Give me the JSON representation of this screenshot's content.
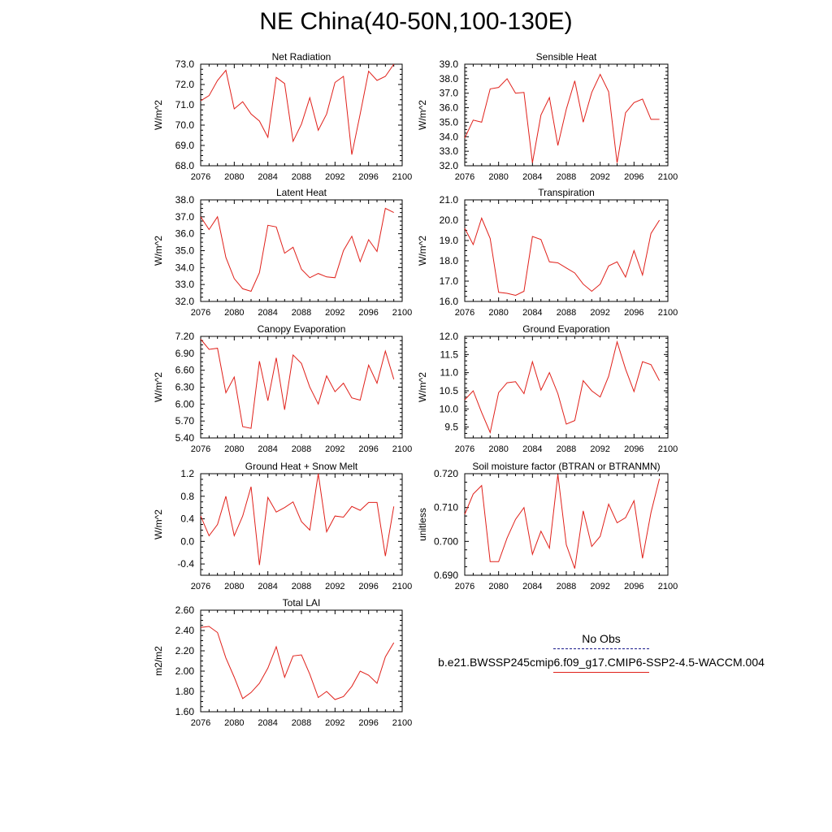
{
  "title": "NE China(40-50N,100-130E)",
  "colors": {
    "model": "#e0201a",
    "obs": "#1a1a8c",
    "axis": "#000000"
  },
  "legend": {
    "obs_label": "No Obs",
    "model_label": "b.e21.BWSSP245cmip6.f09_g17.CMIP6-SSP2-4.5-WACCM.004"
  },
  "chart_data": [
    {
      "type": "line",
      "title": "Net Radiation",
      "ylabel": "W/m^2",
      "xlim": [
        2076,
        2100
      ],
      "xticks": [
        2076,
        2080,
        2084,
        2088,
        2092,
        2096,
        2100
      ],
      "ylim": [
        68.0,
        73.0
      ],
      "yticks": [
        "68.0",
        "69.0",
        "70.0",
        "71.0",
        "72.0",
        "73.0"
      ],
      "x": [
        2076,
        2077,
        2078,
        2079,
        2080,
        2081,
        2082,
        2083,
        2084,
        2085,
        2086,
        2087,
        2088,
        2089,
        2090,
        2091,
        2092,
        2093,
        2094,
        2095,
        2096,
        2097,
        2098,
        2099
      ],
      "y": [
        71.2,
        71.45,
        72.2,
        72.7,
        70.8,
        71.15,
        70.55,
        70.2,
        69.4,
        72.35,
        72.05,
        69.2,
        70.05,
        71.35,
        69.75,
        70.55,
        72.1,
        72.4,
        68.55,
        70.55,
        72.65,
        72.2,
        72.4,
        73.0
      ]
    },
    {
      "type": "line",
      "title": "Sensible Heat",
      "ylabel": "W/m^2",
      "xlim": [
        2076,
        2100
      ],
      "xticks": [
        2076,
        2080,
        2084,
        2088,
        2092,
        2096,
        2100
      ],
      "ylim": [
        32.0,
        39.0
      ],
      "yticks": [
        "32.0",
        "33.0",
        "34.0",
        "35.0",
        "36.0",
        "37.0",
        "38.0",
        "39.0"
      ],
      "x": [
        2076,
        2077,
        2078,
        2079,
        2080,
        2081,
        2082,
        2083,
        2084,
        2085,
        2086,
        2087,
        2088,
        2089,
        2090,
        2091,
        2092,
        2093,
        2094,
        2095,
        2096,
        2097,
        2098,
        2099
      ],
      "y": [
        33.9,
        35.15,
        35.0,
        37.3,
        37.4,
        38.0,
        37.0,
        37.05,
        32.2,
        35.5,
        36.7,
        33.4,
        35.9,
        37.85,
        35.0,
        37.05,
        38.3,
        37.1,
        32.2,
        35.65,
        36.35,
        36.6,
        35.2,
        35.2
      ]
    },
    {
      "type": "line",
      "title": "Latent Heat",
      "ylabel": "W/m^2",
      "xlim": [
        2076,
        2100
      ],
      "xticks": [
        2076,
        2080,
        2084,
        2088,
        2092,
        2096,
        2100
      ],
      "ylim": [
        32.0,
        38.0
      ],
      "yticks": [
        "32.0",
        "33.0",
        "34.0",
        "35.0",
        "36.0",
        "37.0",
        "38.0"
      ],
      "x": [
        2076,
        2077,
        2078,
        2079,
        2080,
        2081,
        2082,
        2083,
        2084,
        2085,
        2086,
        2087,
        2088,
        2089,
        2090,
        2091,
        2092,
        2093,
        2094,
        2095,
        2096,
        2097,
        2098,
        2099
      ],
      "y": [
        37.0,
        36.25,
        37.0,
        34.6,
        33.35,
        32.75,
        32.6,
        33.7,
        36.5,
        36.4,
        34.85,
        35.2,
        33.9,
        33.4,
        33.65,
        33.45,
        33.4,
        35.0,
        35.85,
        34.35,
        35.65,
        34.95,
        37.5,
        37.25
      ]
    },
    {
      "type": "line",
      "title": "Transpiration",
      "ylabel": "W/m^2",
      "xlim": [
        2076,
        2100
      ],
      "xticks": [
        2076,
        2080,
        2084,
        2088,
        2092,
        2096,
        2100
      ],
      "ylim": [
        16.0,
        21.0
      ],
      "yticks": [
        "16.0",
        "17.0",
        "18.0",
        "19.0",
        "20.0",
        "21.0"
      ],
      "x": [
        2076,
        2077,
        2078,
        2079,
        2080,
        2081,
        2082,
        2083,
        2084,
        2085,
        2086,
        2087,
        2088,
        2089,
        2090,
        2091,
        2092,
        2093,
        2094,
        2095,
        2096,
        2097,
        2098,
        2099
      ],
      "y": [
        19.6,
        18.8,
        20.1,
        19.1,
        16.45,
        16.4,
        16.3,
        16.5,
        19.2,
        19.05,
        17.95,
        17.9,
        17.65,
        17.4,
        16.85,
        16.5,
        16.85,
        17.75,
        17.95,
        17.2,
        18.5,
        17.3,
        19.35,
        20.0
      ]
    },
    {
      "type": "line",
      "title": "Canopy Evaporation",
      "ylabel": "W/m^2",
      "xlim": [
        2076,
        2100
      ],
      "xticks": [
        2076,
        2080,
        2084,
        2088,
        2092,
        2096,
        2100
      ],
      "ylim": [
        5.4,
        7.2
      ],
      "yticks": [
        "5.40",
        "5.70",
        "6.00",
        "6.30",
        "6.60",
        "6.90",
        "7.20"
      ],
      "x": [
        2076,
        2077,
        2078,
        2079,
        2080,
        2081,
        2082,
        2083,
        2084,
        2085,
        2086,
        2087,
        2088,
        2089,
        2090,
        2091,
        2092,
        2093,
        2094,
        2095,
        2096,
        2097,
        2098,
        2099
      ],
      "y": [
        7.15,
        6.97,
        6.99,
        6.2,
        6.48,
        5.6,
        5.57,
        6.76,
        6.06,
        6.82,
        5.9,
        6.87,
        6.72,
        6.3,
        6.0,
        6.5,
        6.22,
        6.37,
        6.11,
        6.07,
        6.69,
        6.37,
        6.94,
        6.44
      ]
    },
    {
      "type": "line",
      "title": "Ground Evaporation",
      "ylabel": "W/m^2",
      "xlim": [
        2076,
        2100
      ],
      "xticks": [
        2076,
        2080,
        2084,
        2088,
        2092,
        2096,
        2100
      ],
      "ylim": [
        9.2,
        12.0
      ],
      "yticks": [
        "9.5",
        "10.0",
        "10.5",
        "11.0",
        "11.5",
        "12.0"
      ],
      "x": [
        2076,
        2077,
        2078,
        2079,
        2080,
        2081,
        2082,
        2083,
        2084,
        2085,
        2086,
        2087,
        2088,
        2089,
        2090,
        2091,
        2092,
        2093,
        2094,
        2095,
        2096,
        2097,
        2098,
        2099
      ],
      "y": [
        10.25,
        10.5,
        9.9,
        9.35,
        10.45,
        10.72,
        10.75,
        10.42,
        11.3,
        10.52,
        11.0,
        10.42,
        9.58,
        9.68,
        10.78,
        10.5,
        10.33,
        10.9,
        11.85,
        11.1,
        10.48,
        11.3,
        11.22,
        10.78
      ]
    },
    {
      "type": "line",
      "title": "Ground Heat + Snow Melt",
      "ylabel": "W/m^2",
      "xlim": [
        2076,
        2100
      ],
      "xticks": [
        2076,
        2080,
        2084,
        2088,
        2092,
        2096,
        2100
      ],
      "ylim": [
        -0.6,
        1.2
      ],
      "yticks": [
        "-0.4",
        "0.0",
        "0.4",
        "0.8",
        "1.2"
      ],
      "x": [
        2076,
        2077,
        2078,
        2079,
        2080,
        2081,
        2082,
        2083,
        2084,
        2085,
        2086,
        2087,
        2088,
        2089,
        2090,
        2091,
        2092,
        2093,
        2094,
        2095,
        2096,
        2097,
        2098,
        2099
      ],
      "y": [
        0.45,
        0.1,
        0.3,
        0.8,
        0.1,
        0.45,
        0.97,
        -0.42,
        0.78,
        0.52,
        0.6,
        0.7,
        0.35,
        0.2,
        1.2,
        0.17,
        0.45,
        0.43,
        0.62,
        0.55,
        0.69,
        0.69,
        -0.26,
        0.62
      ]
    },
    {
      "type": "line",
      "title": "Soil moisture factor (BTRAN or BTRANMN)",
      "ylabel": "unitless",
      "xlim": [
        2076,
        2100
      ],
      "xticks": [
        2076,
        2080,
        2084,
        2088,
        2092,
        2096,
        2100
      ],
      "ylim": [
        0.69,
        0.72
      ],
      "yticks": [
        "0.690",
        "0.700",
        "0.710",
        "0.720"
      ],
      "x": [
        2076,
        2077,
        2078,
        2079,
        2080,
        2081,
        2082,
        2083,
        2084,
        2085,
        2086,
        2087,
        2088,
        2089,
        2090,
        2091,
        2092,
        2093,
        2094,
        2095,
        2096,
        2097,
        2098,
        2099
      ],
      "y": [
        0.708,
        0.714,
        0.7165,
        0.694,
        0.694,
        0.701,
        0.7065,
        0.71,
        0.6962,
        0.703,
        0.698,
        0.7198,
        0.699,
        0.692,
        0.709,
        0.6985,
        0.7015,
        0.711,
        0.7055,
        0.707,
        0.712,
        0.695,
        0.7085,
        0.7185
      ]
    },
    {
      "type": "line",
      "title": "Total LAI",
      "ylabel": "m2/m2",
      "xlim": [
        2076,
        2100
      ],
      "xticks": [
        2076,
        2080,
        2084,
        2088,
        2092,
        2096,
        2100
      ],
      "ylim": [
        1.6,
        2.6
      ],
      "yticks": [
        "1.60",
        "1.80",
        "2.00",
        "2.20",
        "2.40",
        "2.60"
      ],
      "x": [
        2076,
        2077,
        2078,
        2079,
        2080,
        2081,
        2082,
        2083,
        2084,
        2085,
        2086,
        2087,
        2088,
        2089,
        2090,
        2091,
        2092,
        2093,
        2094,
        2095,
        2096,
        2097,
        2098,
        2099
      ],
      "y": [
        2.43,
        2.44,
        2.38,
        2.13,
        1.94,
        1.73,
        1.79,
        1.88,
        2.03,
        2.24,
        1.94,
        2.15,
        2.16,
        1.97,
        1.74,
        1.8,
        1.72,
        1.75,
        1.85,
        2.0,
        1.96,
        1.88,
        2.14,
        2.28
      ]
    }
  ]
}
